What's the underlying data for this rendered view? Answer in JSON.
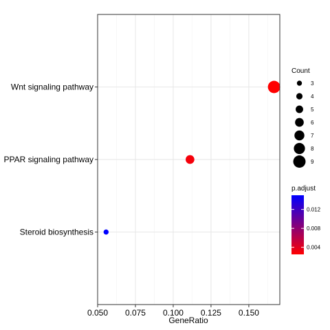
{
  "chart_data": {
    "type": "scatter",
    "title": "",
    "xlabel": "GeneRatio",
    "ylabel": "",
    "xlim": [
      0.05,
      0.1705
    ],
    "x_ticks": [
      0.05,
      0.075,
      0.1,
      0.125,
      0.15
    ],
    "x_tick_labels": [
      "0.050",
      "0.075",
      "0.100",
      "0.125",
      "0.150"
    ],
    "categories": [
      "Steroid biosynthesis",
      "PPAR signaling pathway",
      "Wnt signaling pathway"
    ],
    "points": [
      {
        "label": "Wnt signaling pathway",
        "x": 0.1667,
        "count": 9,
        "p_adjust": 0.0025
      },
      {
        "label": "PPAR signaling pathway",
        "x": 0.1111,
        "count": 6,
        "p_adjust": 0.003
      },
      {
        "label": "Steroid biosynthesis",
        "x": 0.0556,
        "count": 3,
        "p_adjust": 0.015
      }
    ],
    "grid": true,
    "legend": {
      "size": {
        "title": "Count",
        "levels": [
          3,
          4,
          5,
          6,
          7,
          8,
          9
        ],
        "level_labels": [
          "3",
          "4",
          "5",
          "6",
          "7",
          "8",
          "9"
        ]
      },
      "color": {
        "title": "p.adjust",
        "min": 0.0025,
        "max": 0.015,
        "ticks": [
          0.004,
          0.008,
          0.012
        ],
        "tick_labels": [
          "0.004",
          "0.008",
          "0.012"
        ],
        "low_color": "#ff0000",
        "high_color": "#0000ff"
      },
      "placement": "right"
    }
  }
}
